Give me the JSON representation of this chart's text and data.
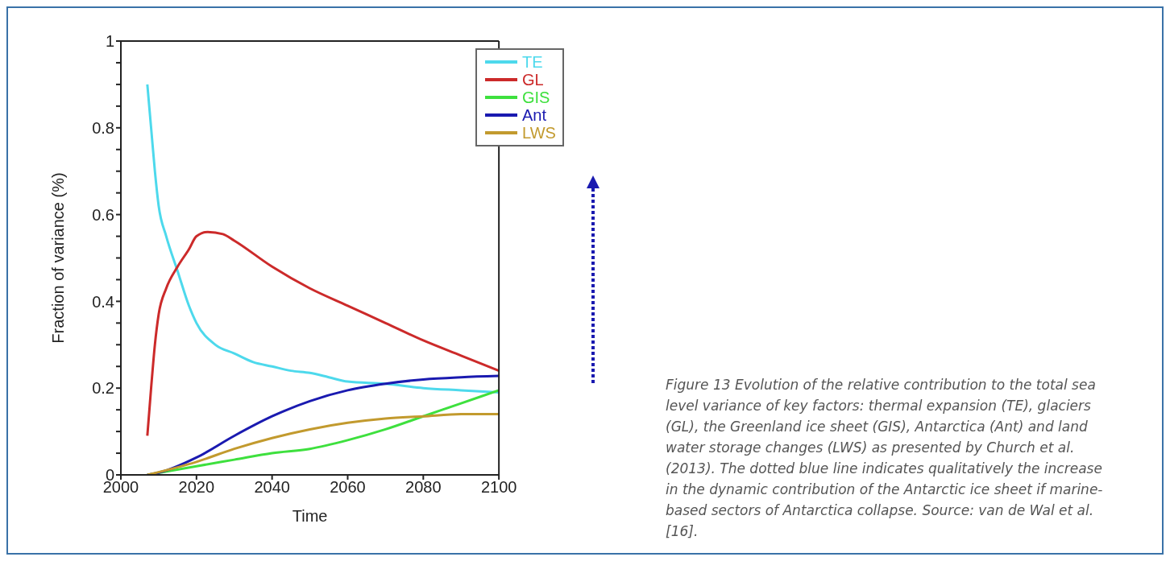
{
  "chart_data": {
    "type": "line",
    "xlabel": "Time",
    "ylabel": "Fraction of variance (%)",
    "xlim": [
      2000,
      2100
    ],
    "xticks": [
      2000,
      2020,
      2040,
      2060,
      2080,
      2100
    ],
    "ylim": [
      0,
      1
    ],
    "yticks": [
      0,
      {
        "value": 0.05,
        "label": null
      },
      {
        "value": 0.1,
        "label": null
      },
      {
        "value": 0.15,
        "label": null
      },
      0.2,
      {
        "value": 0.25,
        "label": null
      },
      {
        "value": 0.3,
        "label": null
      },
      {
        "value": 0.35,
        "label": null
      },
      0.4,
      {
        "value": 0.45,
        "label": null
      },
      {
        "value": 0.5,
        "label": null
      },
      {
        "value": 0.55,
        "label": null
      },
      0.6,
      {
        "value": 0.65,
        "label": null
      },
      {
        "value": 0.7,
        "label": null
      },
      {
        "value": 0.75,
        "label": null
      },
      0.8,
      {
        "value": 0.85,
        "label": null
      },
      {
        "value": 0.9,
        "label": null
      },
      {
        "value": 0.95,
        "label": null
      },
      1
    ],
    "grid": false,
    "legend": "top right",
    "marker": "none",
    "line_style": "solid",
    "series": [
      {
        "name": "TE",
        "color": "#4dd9ec",
        "x": [
          2007,
          2008,
          2009,
          2010,
          2012,
          2015,
          2018,
          2020,
          2025,
          2030,
          2035,
          2040,
          2045,
          2050,
          2055,
          2060,
          2070,
          2080,
          2090,
          2100
        ],
        "values": [
          0.9,
          0.8,
          0.7,
          0.62,
          0.55,
          0.47,
          0.39,
          0.35,
          0.3,
          0.28,
          0.26,
          0.25,
          0.24,
          0.235,
          0.225,
          0.215,
          0.21,
          0.2,
          0.195,
          0.19
        ]
      },
      {
        "name": "GL",
        "color": "#cc2a2a",
        "x": [
          2007,
          2008,
          2009,
          2010,
          2012,
          2015,
          2018,
          2020,
          2023,
          2027,
          2030,
          2040,
          2050,
          2060,
          2070,
          2080,
          2090,
          2100
        ],
        "values": [
          0.09,
          0.2,
          0.3,
          0.37,
          0.43,
          0.48,
          0.52,
          0.55,
          0.56,
          0.555,
          0.54,
          0.48,
          0.43,
          0.39,
          0.35,
          0.31,
          0.275,
          0.24
        ]
      },
      {
        "name": "GIS",
        "color": "#3ee03e",
        "x": [
          2007,
          2020,
          2030,
          2040,
          2050,
          2060,
          2070,
          2080,
          2090,
          2100
        ],
        "values": [
          0,
          0.02,
          0.035,
          0.05,
          0.06,
          0.08,
          0.105,
          0.135,
          0.165,
          0.195
        ]
      },
      {
        "name": "Ant",
        "color": "#1a1ab0",
        "x": [
          2007,
          2010,
          2020,
          2030,
          2040,
          2050,
          2060,
          2070,
          2080,
          2090,
          2100
        ],
        "values": [
          0,
          0.005,
          0.04,
          0.09,
          0.135,
          0.17,
          0.195,
          0.21,
          0.22,
          0.225,
          0.228
        ]
      },
      {
        "name": "LWS",
        "color": "#c29a2e",
        "x": [
          2007,
          2020,
          2030,
          2040,
          2050,
          2060,
          2070,
          2080,
          2090,
          2100
        ],
        "values": [
          0,
          0.03,
          0.06,
          0.085,
          0.105,
          0.12,
          0.13,
          0.135,
          0.14,
          0.14
        ]
      }
    ],
    "annotations": [
      "Figure 13 Evolution of the relative contribution to the total sea level variance of key factors: thermal expansion (TE), glaciers (GL), the Greenland ice sheet (GIS), Antarctica (Ant) and land water storage changes (LWS) as presented by Church et al. (2013). The dotted blue line indicates qualitatively the increase in the dynamic contribution of the Antarctic ice sheet if marine-based sectors of Antarctica collapse. Source: van de Wal et al. [16]."
    ]
  }
}
